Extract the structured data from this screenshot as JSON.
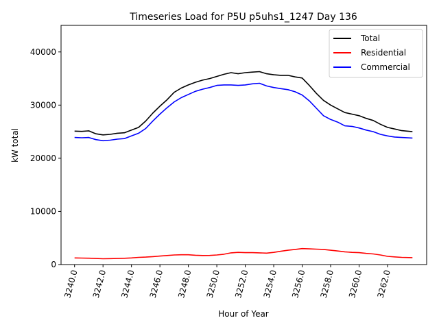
{
  "chart_data": {
    "type": "line",
    "title": "Timeseries Load for P5U p5uhs1_1247  Day 136",
    "xlabel": "Hour of Year",
    "ylabel": "kW total",
    "xlim": [
      3239.05,
      3264.75
    ],
    "ylim": [
      0,
      45000
    ],
    "xticks": [
      3240,
      3242,
      3244,
      3246,
      3248,
      3250,
      3252,
      3254,
      3256,
      3258,
      3260,
      3262
    ],
    "xtick_labels": [
      "3240.0",
      "3242.0",
      "3244.0",
      "3246.0",
      "3248.0",
      "3250.0",
      "3252.0",
      "3254.0",
      "3256.0",
      "3258.0",
      "3260.0",
      "3262.0"
    ],
    "yticks": [
      0,
      10000,
      20000,
      30000,
      40000
    ],
    "ytick_labels": [
      "0",
      "10000",
      "20000",
      "30000",
      "40000"
    ],
    "legend_position": "top-right",
    "x": [
      3240.0,
      3240.5,
      3241.0,
      3241.5,
      3242.0,
      3242.5,
      3243.0,
      3243.5,
      3244.0,
      3244.5,
      3245.0,
      3245.5,
      3246.0,
      3246.5,
      3247.0,
      3247.5,
      3248.0,
      3248.5,
      3249.0,
      3249.5,
      3250.0,
      3250.5,
      3251.0,
      3251.5,
      3252.0,
      3252.5,
      3253.0,
      3253.5,
      3254.0,
      3254.5,
      3255.0,
      3255.5,
      3256.0,
      3256.5,
      3257.0,
      3257.5,
      3258.0,
      3258.5,
      3259.0,
      3259.5,
      3260.0,
      3260.5,
      3261.0,
      3261.5,
      3262.0,
      3262.5,
      3263.0,
      3263.75
    ],
    "series": [
      {
        "name": "Total",
        "color": "#000000",
        "values": [
          25100,
          25050,
          25150,
          24600,
          24400,
          24500,
          24700,
          24800,
          25300,
          25800,
          27000,
          28500,
          29800,
          31000,
          32400,
          33200,
          33800,
          34300,
          34700,
          35000,
          35400,
          35800,
          36100,
          35900,
          36100,
          36200,
          36300,
          35900,
          35700,
          35600,
          35600,
          35300,
          35100,
          33700,
          32200,
          30900,
          30000,
          29300,
          28600,
          28300,
          28000,
          27500,
          27100,
          26400,
          25800,
          25500,
          25200,
          25000
        ]
      },
      {
        "name": "Residential",
        "color": "#ff0000",
        "values": [
          1250,
          1230,
          1200,
          1150,
          1100,
          1120,
          1150,
          1180,
          1250,
          1350,
          1400,
          1500,
          1600,
          1700,
          1800,
          1850,
          1850,
          1750,
          1700,
          1720,
          1800,
          1950,
          2200,
          2300,
          2250,
          2250,
          2200,
          2150,
          2300,
          2500,
          2700,
          2850,
          3000,
          2950,
          2900,
          2850,
          2700,
          2550,
          2400,
          2300,
          2250,
          2100,
          2000,
          1800,
          1550,
          1450,
          1350,
          1300
        ]
      },
      {
        "name": "Commercial",
        "color": "#0000ff",
        "values": [
          23900,
          23850,
          23900,
          23500,
          23300,
          23400,
          23600,
          23700,
          24200,
          24700,
          25600,
          27000,
          28300,
          29500,
          30600,
          31400,
          32000,
          32600,
          33000,
          33300,
          33700,
          33800,
          33800,
          33700,
          33800,
          34000,
          34100,
          33600,
          33300,
          33100,
          32900,
          32500,
          31900,
          30800,
          29400,
          28000,
          27300,
          26800,
          26100,
          26000,
          25700,
          25300,
          25000,
          24500,
          24200,
          24000,
          23900,
          23800
        ]
      }
    ]
  }
}
